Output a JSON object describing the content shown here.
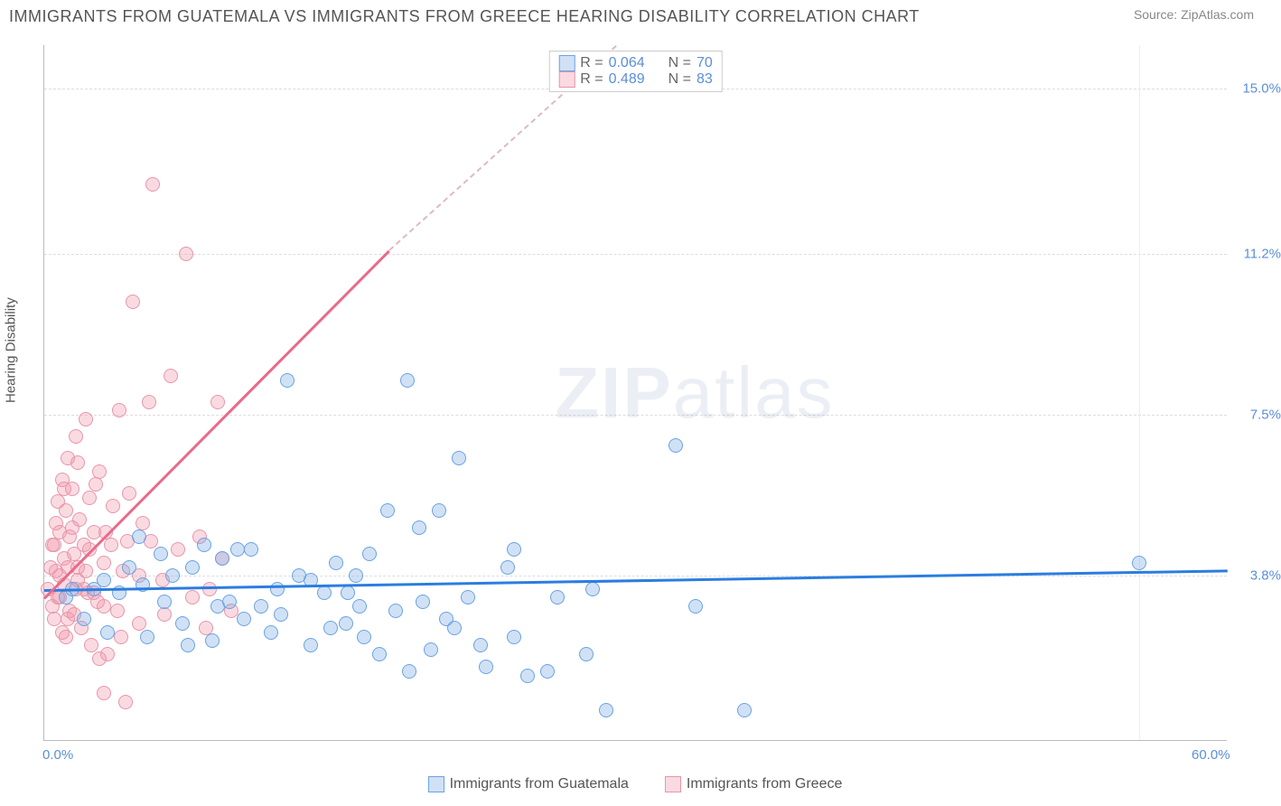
{
  "title": "IMMIGRANTS FROM GUATEMALA VS IMMIGRANTS FROM GREECE HEARING DISABILITY CORRELATION CHART",
  "source": "Source: ZipAtlas.com",
  "ylabel": "Hearing Disability",
  "watermark_bold": "ZIP",
  "watermark_light": "atlas",
  "xlim": [
    0,
    60
  ],
  "ylim": [
    0,
    16
  ],
  "xticks": [
    {
      "v": 0,
      "label": "0.0%"
    },
    {
      "v": 60,
      "label": "60.0%"
    }
  ],
  "yticks": [
    {
      "v": 3.8,
      "label": "3.8%"
    },
    {
      "v": 7.5,
      "label": "7.5%"
    },
    {
      "v": 11.2,
      "label": "11.2%"
    },
    {
      "v": 15.0,
      "label": "15.0%"
    }
  ],
  "gridlines_y": [
    3.8,
    7.5,
    11.2,
    15.0
  ],
  "gridlines_x": [
    55.5
  ],
  "colors": {
    "series1_fill": "rgba(120,170,230,0.35)",
    "series1_stroke": "#6aa3e0",
    "series2_fill": "rgba(240,150,170,0.35)",
    "series2_stroke": "#e895ab",
    "trend1": "#2b7de0",
    "trend2": "#e86b8a",
    "trend2_dash": "rgba(232,107,138,0.5)",
    "tick_text": "#5a8fd8"
  },
  "stats_legend": {
    "rows": [
      {
        "swatch_fill": "rgba(120,170,230,0.35)",
        "swatch_stroke": "#6aa3e0",
        "r_label": "R =",
        "r": "0.064",
        "n_label": "N =",
        "n": "70"
      },
      {
        "swatch_fill": "rgba(240,150,170,0.35)",
        "swatch_stroke": "#e895ab",
        "r_label": "R =",
        "r": "0.489",
        "n_label": "N =",
        "n": "83"
      }
    ]
  },
  "bottom_legend": [
    {
      "swatch_fill": "rgba(120,170,230,0.35)",
      "swatch_stroke": "#6aa3e0",
      "label": "Immigrants from Guatemala"
    },
    {
      "swatch_fill": "rgba(240,150,170,0.35)",
      "swatch_stroke": "#e895ab",
      "label": "Immigrants from Greece"
    }
  ],
  "trend_lines": [
    {
      "x1": 0,
      "y1": 3.5,
      "x2": 60,
      "y2": 3.95,
      "color": "#2b7de0",
      "dashed": false
    },
    {
      "x1": 0,
      "y1": 3.3,
      "x2": 17.5,
      "y2": 11.3,
      "color": "#e86b8a",
      "dashed": false
    },
    {
      "x1": 17.5,
      "y1": 11.3,
      "x2": 29,
      "y2": 16,
      "color": "rgba(200,140,155,0.6)",
      "dashed": true
    }
  ],
  "series1_points": [
    [
      1.1,
      3.3
    ],
    [
      1.4,
      3.5
    ],
    [
      2.0,
      2.8
    ],
    [
      2.5,
      3.5
    ],
    [
      3.0,
      3.7
    ],
    [
      3.2,
      2.5
    ],
    [
      3.8,
      3.4
    ],
    [
      4.3,
      4.0
    ],
    [
      5.0,
      3.6
    ],
    [
      5.2,
      2.4
    ],
    [
      5.9,
      4.3
    ],
    [
      6.5,
      3.8
    ],
    [
      7.0,
      2.7
    ],
    [
      7.5,
      4.0
    ],
    [
      8.1,
      4.5
    ],
    [
      8.5,
      2.3
    ],
    [
      9.0,
      4.2
    ],
    [
      9.4,
      3.2
    ],
    [
      10.1,
      2.8
    ],
    [
      10.5,
      4.4
    ],
    [
      11.0,
      3.1
    ],
    [
      11.5,
      2.5
    ],
    [
      12.3,
      8.3
    ],
    [
      12.9,
      3.8
    ],
    [
      13.5,
      2.2
    ],
    [
      14.2,
      3.4
    ],
    [
      14.8,
      4.1
    ],
    [
      15.3,
      2.7
    ],
    [
      15.4,
      3.4
    ],
    [
      16.0,
      3.1
    ],
    [
      16.5,
      4.3
    ],
    [
      17.0,
      2.0
    ],
    [
      17.4,
      5.3
    ],
    [
      17.8,
      3.0
    ],
    [
      18.5,
      1.6
    ],
    [
      19.0,
      4.9
    ],
    [
      19.2,
      3.2
    ],
    [
      19.6,
      2.1
    ],
    [
      20.0,
      5.3
    ],
    [
      20.4,
      2.8
    ],
    [
      21.0,
      6.5
    ],
    [
      21.5,
      3.3
    ],
    [
      22.1,
      2.2
    ],
    [
      22.4,
      1.7
    ],
    [
      23.5,
      4.0
    ],
    [
      23.8,
      2.4
    ],
    [
      23.8,
      4.4
    ],
    [
      24.5,
      1.5
    ],
    [
      25.5,
      1.6
    ],
    [
      26.0,
      3.3
    ],
    [
      27.5,
      2.0
    ],
    [
      27.8,
      3.5
    ],
    [
      28.5,
      0.7
    ],
    [
      32.0,
      6.8
    ],
    [
      33.0,
      3.1
    ],
    [
      35.5,
      0.7
    ],
    [
      55.5,
      4.1
    ],
    [
      16.2,
      2.4
    ],
    [
      7.3,
      2.2
    ],
    [
      9.8,
      4.4
    ],
    [
      12.0,
      2.9
    ],
    [
      13.5,
      3.7
    ],
    [
      18.4,
      8.3
    ],
    [
      4.8,
      4.7
    ],
    [
      6.1,
      3.2
    ],
    [
      8.8,
      3.1
    ],
    [
      11.8,
      3.5
    ],
    [
      15.8,
      3.8
    ],
    [
      20.8,
      2.6
    ],
    [
      14.5,
      2.6
    ]
  ],
  "series2_points": [
    [
      0.2,
      3.5
    ],
    [
      0.3,
      4.0
    ],
    [
      0.4,
      3.1
    ],
    [
      0.5,
      2.8
    ],
    [
      0.5,
      4.5
    ],
    [
      0.6,
      5.0
    ],
    [
      0.7,
      3.3
    ],
    [
      0.7,
      5.5
    ],
    [
      0.8,
      3.8
    ],
    [
      0.8,
      4.8
    ],
    [
      0.9,
      2.5
    ],
    [
      0.9,
      6.0
    ],
    [
      1.0,
      4.2
    ],
    [
      1.0,
      3.6
    ],
    [
      1.1,
      5.3
    ],
    [
      1.1,
      2.4
    ],
    [
      1.2,
      6.5
    ],
    [
      1.2,
      4.0
    ],
    [
      1.3,
      3.0
    ],
    [
      1.3,
      4.7
    ],
    [
      1.4,
      5.8
    ],
    [
      1.5,
      2.9
    ],
    [
      1.5,
      4.3
    ],
    [
      1.6,
      7.0
    ],
    [
      1.7,
      3.7
    ],
    [
      1.8,
      5.1
    ],
    [
      1.9,
      2.6
    ],
    [
      2.0,
      4.5
    ],
    [
      2.1,
      7.4
    ],
    [
      2.2,
      3.4
    ],
    [
      2.3,
      5.6
    ],
    [
      2.4,
      2.2
    ],
    [
      2.5,
      4.8
    ],
    [
      2.7,
      3.2
    ],
    [
      2.8,
      6.2
    ],
    [
      3.0,
      4.1
    ],
    [
      3.2,
      2.0
    ],
    [
      3.5,
      5.4
    ],
    [
      3.8,
      7.6
    ],
    [
      4.0,
      3.9
    ],
    [
      4.2,
      4.6
    ],
    [
      4.5,
      10.1
    ],
    [
      4.8,
      2.7
    ],
    [
      5.0,
      5.0
    ],
    [
      5.3,
      7.8
    ],
    [
      5.5,
      12.8
    ],
    [
      6.0,
      3.7
    ],
    [
      6.4,
      8.4
    ],
    [
      6.8,
      4.4
    ],
    [
      7.2,
      11.2
    ],
    [
      7.5,
      3.3
    ],
    [
      7.9,
      4.7
    ],
    [
      8.2,
      2.6
    ],
    [
      8.4,
      3.5
    ],
    [
      8.8,
      7.8
    ],
    [
      9.0,
      4.2
    ],
    [
      9.5,
      3.0
    ],
    [
      0.4,
      4.5
    ],
    [
      0.6,
      3.9
    ],
    [
      0.8,
      3.3
    ],
    [
      1.0,
      5.8
    ],
    [
      1.2,
      2.8
    ],
    [
      1.4,
      4.9
    ],
    [
      1.7,
      6.4
    ],
    [
      2.0,
      3.5
    ],
    [
      2.3,
      4.4
    ],
    [
      2.6,
      5.9
    ],
    [
      3.0,
      3.1
    ],
    [
      3.4,
      4.5
    ],
    [
      3.9,
      2.4
    ],
    [
      4.3,
      5.7
    ],
    [
      4.8,
      3.8
    ],
    [
      5.4,
      4.6
    ],
    [
      6.1,
      2.9
    ],
    [
      1.7,
      4.0
    ],
    [
      2.1,
      3.9
    ],
    [
      2.5,
      3.4
    ],
    [
      3.1,
      4.8
    ],
    [
      3.7,
      3.0
    ],
    [
      1.6,
      3.5
    ],
    [
      4.1,
      0.9
    ],
    [
      3.0,
      1.1
    ],
    [
      2.8,
      1.9
    ]
  ]
}
